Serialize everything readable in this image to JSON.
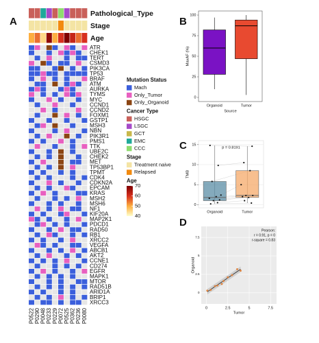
{
  "chart_data": [
    {
      "type": "oncoprint",
      "label": "A",
      "columns": [
        "P0522",
        "P0290",
        "P0048",
        "P0233",
        "P0229",
        "P0072",
        "P0525",
        "P0362",
        "P0236",
        "P0080"
      ],
      "annotations": [
        {
          "name": "Pathological_Type",
          "values": [
            "HSGC",
            "HSGC",
            "EMC",
            "LSGC",
            "HSGC",
            "CCC",
            "LSGC",
            "HSGC",
            "HSGC",
            "HSGC"
          ]
        },
        {
          "name": "Stage",
          "values": [
            "Treatment naive",
            "Treatment naive",
            "Treatment naive",
            "Treatment naive",
            "Treatment naive",
            "Relapsed",
            "Treatment naive",
            "Treatment naive",
            "Treatment naive",
            "Treatment naive"
          ]
        },
        {
          "name": "Age",
          "values": [
            50,
            55,
            45,
            68,
            50,
            60,
            70,
            62,
            55,
            60
          ]
        }
      ],
      "rows": [
        "ATR",
        "CHEK1",
        "TERT",
        "CSMD3",
        "PIK3CA",
        "TP53",
        "BRAF",
        "ATM",
        "AURKA",
        "TYMS",
        "MYC",
        "CCND1",
        "CCND2",
        "FOXM1",
        "GSTP1",
        "MSH3",
        "NBN",
        "PIK3R1",
        "PMS1",
        "TTK",
        "UBE2C",
        "CHEK2",
        "MET",
        "TP53BP1",
        "TPMT",
        "CDK4",
        "CDKN2A",
        "EPCAM",
        "KRAS",
        "MSH2",
        "MSH6",
        "NF1",
        "KIF20A",
        "MAP2K1",
        "PDCD1",
        "RAD50",
        "RB1",
        "XRCC2",
        "VEGFA",
        "ABCB1",
        "AKT2",
        "CCNE1",
        "CD274",
        "EGFR",
        "MAPK1",
        "MTOR",
        "RAD51B",
        "ARID1A",
        "BRIP1",
        "XRCC3"
      ],
      "matrix": [
        [
          0,
          1,
          null,
          2,
          0,
          null,
          1,
          0,
          null,
          1
        ],
        [
          0,
          null,
          null,
          0,
          null,
          1,
          0,
          1,
          0,
          null
        ],
        [
          null,
          0,
          null,
          1,
          null,
          null,
          0,
          null,
          0,
          0
        ],
        [
          1,
          null,
          2,
          0,
          null,
          0,
          0,
          null,
          1,
          null
        ],
        [
          0,
          0,
          null,
          null,
          0,
          2,
          null,
          0,
          null,
          0
        ],
        [
          0,
          0,
          1,
          0,
          0,
          null,
          0,
          0,
          0,
          0
        ],
        [
          0,
          null,
          1,
          null,
          0,
          null,
          0,
          null,
          null,
          1
        ],
        [
          null,
          0,
          0,
          null,
          2,
          null,
          0,
          1,
          0,
          null
        ],
        [
          0,
          1,
          0,
          null,
          null,
          0,
          1,
          0,
          null,
          null
        ],
        [
          1,
          null,
          0,
          null,
          0,
          null,
          1,
          0,
          1,
          null
        ],
        [
          0,
          null,
          null,
          1,
          null,
          0,
          null,
          null,
          0,
          null
        ],
        [
          null,
          0,
          null,
          null,
          1,
          null,
          null,
          0,
          null,
          null
        ],
        [
          null,
          null,
          1,
          null,
          0,
          null,
          null,
          null,
          1,
          null
        ],
        [
          null,
          0,
          null,
          null,
          2,
          null,
          1,
          null,
          0,
          null
        ],
        [
          0,
          null,
          null,
          0,
          null,
          null,
          0,
          null,
          null,
          0
        ],
        [
          null,
          0,
          1,
          null,
          2,
          null,
          null,
          0,
          null,
          null
        ],
        [
          0,
          null,
          null,
          null,
          0,
          null,
          1,
          null,
          null,
          0
        ],
        [
          null,
          0,
          null,
          1,
          null,
          null,
          2,
          null,
          0,
          null
        ],
        [
          0,
          null,
          0,
          null,
          null,
          1,
          null,
          0,
          null,
          null
        ],
        [
          null,
          1,
          null,
          null,
          0,
          null,
          null,
          0,
          null,
          1
        ],
        [
          0,
          null,
          null,
          0,
          null,
          2,
          null,
          0,
          null,
          null
        ],
        [
          null,
          0,
          null,
          0,
          null,
          2,
          null,
          null,
          0,
          null
        ],
        [
          0,
          null,
          1,
          null,
          null,
          2,
          null,
          0,
          0,
          null
        ],
        [
          null,
          0,
          null,
          0,
          null,
          2,
          null,
          1,
          null,
          null
        ],
        [
          0,
          null,
          0,
          null,
          null,
          0,
          null,
          0,
          null,
          null
        ],
        [
          null,
          0,
          null,
          0,
          null,
          null,
          null,
          0,
          null,
          0
        ],
        [
          0,
          null,
          null,
          1,
          null,
          0,
          null,
          null,
          0,
          null
        ],
        [
          null,
          0,
          null,
          0,
          null,
          null,
          1,
          0,
          null,
          null
        ],
        [
          0,
          null,
          1,
          null,
          0,
          null,
          null,
          null,
          0,
          0
        ],
        [
          null,
          0,
          null,
          null,
          0,
          null,
          0,
          null,
          1,
          null
        ],
        [
          0,
          null,
          null,
          0,
          null,
          0,
          null,
          null,
          0,
          null
        ],
        [
          null,
          1,
          null,
          0,
          null,
          1,
          null,
          0,
          0,
          null
        ],
        [
          0,
          null,
          0,
          null,
          null,
          0,
          1,
          null,
          null,
          0
        ],
        [
          1,
          0,
          null,
          0,
          null,
          null,
          0,
          null,
          1,
          null
        ],
        [
          null,
          0,
          1,
          null,
          0,
          null,
          0,
          null,
          null,
          0
        ],
        [
          0,
          null,
          null,
          0,
          null,
          1,
          null,
          0,
          0,
          null
        ],
        [
          null,
          0,
          null,
          1,
          0,
          null,
          null,
          0,
          null,
          0
        ],
        [
          0,
          null,
          0,
          null,
          null,
          0,
          null,
          1,
          null,
          null
        ],
        [
          null,
          1,
          0,
          null,
          0,
          null,
          null,
          0,
          0,
          null
        ],
        [
          0,
          null,
          null,
          0,
          null,
          0,
          null,
          1,
          null,
          0
        ],
        [
          null,
          0,
          null,
          1,
          null,
          null,
          0,
          null,
          0,
          null
        ],
        [
          0,
          null,
          0,
          null,
          0,
          null,
          1,
          null,
          null,
          0
        ],
        [
          null,
          0,
          null,
          null,
          0,
          null,
          0,
          null,
          0,
          null
        ],
        [
          0,
          null,
          1,
          null,
          0,
          null,
          null,
          0,
          null,
          1
        ],
        [
          null,
          0,
          null,
          0,
          null,
          0,
          null,
          0,
          null,
          null
        ],
        [
          0,
          null,
          null,
          0,
          null,
          0,
          null,
          null,
          0,
          0
        ],
        [
          null,
          0,
          null,
          0,
          null,
          0,
          null,
          0,
          null,
          0
        ],
        [
          0,
          null,
          0,
          null,
          null,
          0,
          null,
          0,
          null,
          null
        ],
        [
          null,
          0,
          null,
          0,
          null,
          1,
          null,
          0,
          null,
          0
        ],
        [
          0,
          null,
          0,
          0,
          null,
          0,
          null,
          0,
          0,
          null
        ]
      ],
      "empty_color": "#e6e6e6",
      "legends": [
        {
          "title": "Mutation Status",
          "items": [
            "Mach",
            "Only_Tumor",
            "Only_Organoid"
          ],
          "colors": [
            "#3b5fdc",
            "#e860c0",
            "#8b4513"
          ]
        },
        {
          "title": "Cancer Type",
          "items": [
            "HSGC",
            "LSGC",
            "GCT",
            "EMC",
            "CCC"
          ],
          "colors": [
            "#c9605a",
            "#a64ac9",
            "#c8b84a",
            "#1fa99a",
            "#8fdc6e"
          ]
        },
        {
          "title": "Stage",
          "items": [
            "Treatment naive",
            "Relapsed"
          ],
          "colors": [
            "#f4e4a4",
            "#f28a0f"
          ]
        }
      ],
      "colorbar": {
        "title": "Age",
        "lim": [
          40,
          70
        ],
        "ticks": [
          40,
          50,
          60,
          70
        ],
        "colors": [
          "#ffffcc",
          "#fdae40",
          "#d7301f",
          "#7f0000"
        ]
      }
    },
    {
      "type": "box",
      "label": "B",
      "y_label": "MaxAF (%)",
      "x_label": "Source",
      "categories": [
        "Organoid",
        "Tumor"
      ],
      "colors": [
        "#7a12c4",
        "#e84a30"
      ],
      "min": [
        10,
        3
      ],
      "q1": [
        28,
        47
      ],
      "median": [
        60,
        87
      ],
      "q3": [
        82,
        94
      ],
      "max": [
        97,
        100
      ],
      "ylim": [
        -5,
        105
      ],
      "yticks": [
        0,
        25,
        50,
        75,
        100
      ],
      "grid": false
    },
    {
      "type": "box",
      "label": "C",
      "y_label": "TMB",
      "annotation": "p = 0.8191",
      "categories": [
        "Organoid",
        "Tumor"
      ],
      "colors": [
        "#5b8ea6",
        "#f5a96a"
      ],
      "min": [
        0.2,
        0.4
      ],
      "q1": [
        1.0,
        1.8
      ],
      "median": [
        1.8,
        2.3
      ],
      "q3": [
        5.8,
        8.5
      ],
      "max": [
        14.8,
        14.6
      ],
      "points": [
        [
          0.2,
          0.5,
          1.0,
          1.2,
          1.6,
          2.0,
          2.4,
          5.8,
          9.8,
          14.8
        ],
        [
          0.4,
          1.0,
          1.8,
          2.0,
          2.3,
          2.3,
          5.0,
          8.5,
          10.5,
          14.6
        ]
      ],
      "ylim": [
        -0.8,
        16
      ],
      "yticks": [
        0,
        5,
        10,
        15
      ],
      "grid": true
    },
    {
      "type": "scatter",
      "label": "D",
      "x_label": "Tumor",
      "y_label": "Organoid",
      "annotation": [
        "Pearson:",
        "r = 0.91, p = 0",
        "r-square = 0.83"
      ],
      "x": [
        0.1,
        0.5,
        1.0,
        1.3,
        1.8,
        2.0,
        2.5,
        3.0,
        3.6,
        4.0
      ],
      "y": [
        0.3,
        0.4,
        0.9,
        1.0,
        1.2,
        1.6,
        2.1,
        2.4,
        3.2,
        3.0
      ],
      "color": "#e0823c",
      "xlim": [
        -0.6,
        8.2
      ],
      "ylim": [
        -1.5,
        9
      ],
      "xticks": [
        0,
        2.5,
        5,
        7.5
      ],
      "yticks": [
        0,
        2.5,
        5,
        7.5
      ],
      "grid": true
    }
  ]
}
